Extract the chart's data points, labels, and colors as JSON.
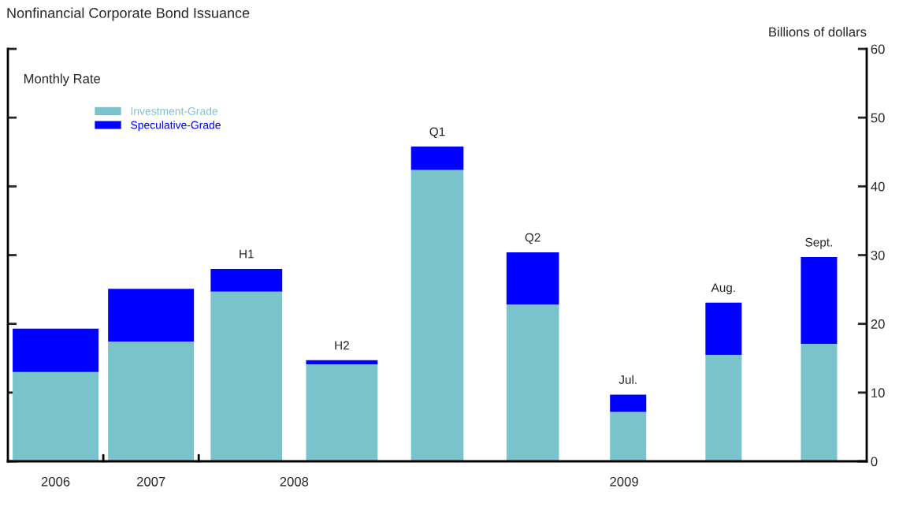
{
  "chart_data": {
    "type": "bar",
    "title": "Nonfinancial Corporate Bond Issuance",
    "ylabel": "Billions of dollars",
    "categories": [
      null,
      null,
      null,
      null,
      null,
      null,
      null,
      null,
      null
    ],
    "totals": [
      null,
      null,
      "H1",
      "H2",
      "Q1",
      "Q2",
      "Jul.",
      "Aug.",
      "Sept."
    ],
    "series": [
      {
        "name": "Investment-Grade",
        "color": "#7ac3cc",
        "values": [
          13.0,
          17.4,
          24.7,
          14.1,
          42.4,
          22.8,
          7.2,
          15.5,
          17.1
        ]
      },
      {
        "name": "Speculative-Grade",
        "color": "#0000ff",
        "values": [
          6.3,
          7.7,
          3.3,
          0.6,
          3.4,
          7.6,
          2.5,
          7.6,
          12.6
        ]
      }
    ],
    "stacked": true,
    "ylim": [
      0,
      60
    ],
    "yticks": [
      0,
      10,
      20,
      30,
      40,
      50,
      60
    ],
    "grid": false,
    "legend": "top left",
    "annotations": [
      "Monthly Rate",
      "2006",
      "2007",
      "2008",
      "2009"
    ]
  }
}
